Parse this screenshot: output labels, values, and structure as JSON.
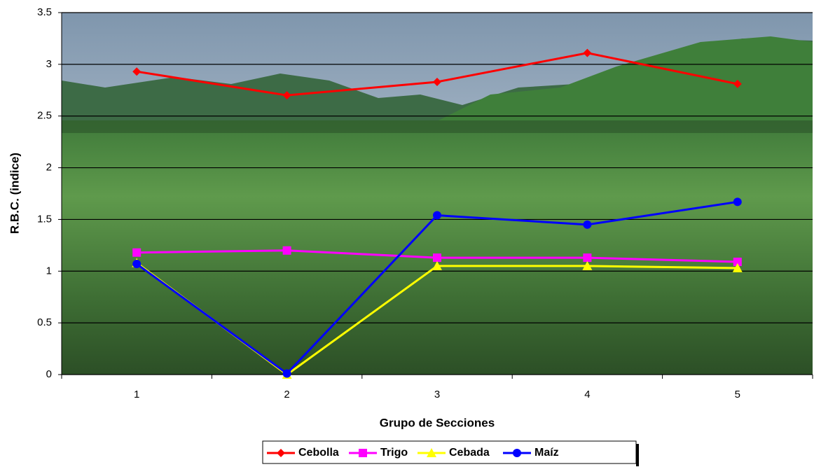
{
  "chart_data": {
    "type": "line",
    "x_label": "Grupo de Secciones",
    "y_label": "R.B.C. (indice)",
    "categories": [
      "1",
      "2",
      "3",
      "4",
      "5"
    ],
    "series": [
      {
        "name": "Cebolla",
        "color": "#ff0000",
        "marker": "diamond",
        "values": [
          2.93,
          2.7,
          2.83,
          3.11,
          2.81
        ]
      },
      {
        "name": "Trigo",
        "color": "#ff00ff",
        "marker": "square",
        "values": [
          1.18,
          1.2,
          1.13,
          1.13,
          1.09
        ]
      },
      {
        "name": "Cebada",
        "color": "#ffff00",
        "marker": "triangle",
        "values": [
          1.08,
          0,
          1.05,
          1.05,
          1.03
        ]
      },
      {
        "name": "Maíz",
        "color": "#0000ff",
        "marker": "circle",
        "values": [
          1.07,
          0.01,
          1.54,
          1.45,
          1.67
        ]
      }
    ],
    "ylim": [
      0,
      3.5
    ],
    "yticks": [
      0,
      0.5,
      1,
      1.5,
      2,
      2.5,
      3,
      3.5
    ],
    "grid": true
  }
}
